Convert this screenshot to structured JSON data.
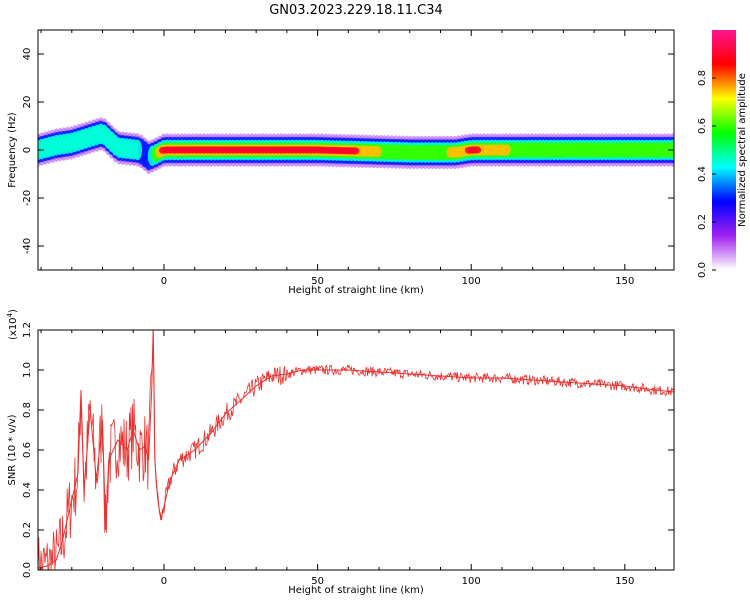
{
  "title": "GN03.2023.229.18.11.C34",
  "colors": {
    "snr_line": "#e8312f",
    "frame": "#000000"
  },
  "chart_data": [
    {
      "type": "heatmap",
      "xlabel": "Height of straight line (km)",
      "ylabel": "Frequency (Hz)",
      "xlim": [
        -41,
        166
      ],
      "ylim": [
        -50,
        50
      ],
      "xticks": [
        0,
        50,
        100,
        150
      ],
      "yticks": [
        40,
        20,
        0,
        -20,
        -40
      ],
      "grid": false,
      "colorbar": {
        "label": "Normalized spectral amplitude",
        "range": [
          0,
          1
        ],
        "ticks": [
          0.0,
          0.2,
          0.4,
          0.6,
          0.8
        ],
        "colormap": [
          "#ffffff",
          "#a020f0",
          "#0000ff",
          "#00ffff",
          "#00ff00",
          "#ffff00",
          "#ff0000",
          "#ff1493"
        ]
      },
      "band_center_freq_hz": [
        [
          -41,
          0
        ],
        [
          -35,
          2
        ],
        [
          -30,
          3
        ],
        [
          -25,
          5
        ],
        [
          -20,
          7
        ],
        [
          -15,
          1
        ],
        [
          -8,
          0
        ],
        [
          -5,
          -3
        ],
        [
          -3,
          -2
        ],
        [
          0,
          0
        ],
        [
          20,
          0
        ],
        [
          50,
          0
        ],
        [
          80,
          -1
        ],
        [
          95,
          -1
        ],
        [
          100,
          0
        ],
        [
          130,
          0
        ],
        [
          166,
          0
        ]
      ],
      "band_peak_amplitude": [
        [
          -41,
          0.4
        ],
        [
          -30,
          0.55
        ],
        [
          -20,
          0.45
        ],
        [
          -10,
          0.45
        ],
        [
          -5,
          0.35
        ],
        [
          0,
          0.95
        ],
        [
          30,
          0.95
        ],
        [
          60,
          0.9
        ],
        [
          75,
          0.6
        ],
        [
          90,
          0.6
        ],
        [
          100,
          0.9
        ],
        [
          120,
          0.55
        ],
        [
          150,
          0.55
        ],
        [
          166,
          0.55
        ]
      ]
    },
    {
      "type": "line",
      "xlabel": "Height of straight line (km)",
      "ylabel": "SNR (10 * v/v)",
      "y_multiplier_label": "(x10",
      "y_multiplier_exp": "4",
      "xlim": [
        -41,
        166
      ],
      "ylim": [
        0,
        1.2
      ],
      "xticks": [
        0,
        50,
        100,
        150
      ],
      "yticks": [
        0.0,
        0.2,
        0.4,
        0.6,
        0.8,
        1.0,
        1.2
      ],
      "grid": false,
      "series": [
        {
          "points": [
            [
              -41,
              0.01
            ],
            [
              -38,
              0.02
            ],
            [
              -35,
              0.05
            ],
            [
              -33,
              0.15
            ],
            [
              -30,
              0.35
            ],
            [
              -28,
              0.48
            ],
            [
              -27,
              0.9
            ],
            [
              -26,
              0.4
            ],
            [
              -24,
              0.8
            ],
            [
              -22,
              0.45
            ],
            [
              -20,
              0.75
            ],
            [
              -19,
              0.2
            ],
            [
              -18,
              0.55
            ],
            [
              -15,
              0.65
            ],
            [
              -12,
              0.6
            ],
            [
              -10,
              0.7
            ],
            [
              -8,
              0.6
            ],
            [
              -6,
              0.62
            ],
            [
              -5,
              0.55
            ],
            [
              -4,
              0.9
            ],
            [
              -3.5,
              1.22
            ],
            [
              -3,
              0.55
            ],
            [
              -2,
              0.35
            ],
            [
              -1,
              0.25
            ],
            [
              2,
              0.45
            ],
            [
              5,
              0.55
            ],
            [
              10,
              0.6
            ],
            [
              15,
              0.68
            ],
            [
              20,
              0.78
            ],
            [
              25,
              0.85
            ],
            [
              30,
              0.92
            ],
            [
              35,
              0.97
            ],
            [
              40,
              0.98
            ],
            [
              45,
              1.0
            ],
            [
              50,
              1.0
            ],
            [
              60,
              1.0
            ],
            [
              70,
              0.99
            ],
            [
              80,
              0.98
            ],
            [
              90,
              0.97
            ],
            [
              100,
              0.96
            ],
            [
              110,
              0.96
            ],
            [
              120,
              0.95
            ],
            [
              130,
              0.94
            ],
            [
              140,
              0.93
            ],
            [
              150,
              0.92
            ],
            [
              160,
              0.9
            ],
            [
              166,
              0.89
            ]
          ]
        }
      ]
    }
  ]
}
